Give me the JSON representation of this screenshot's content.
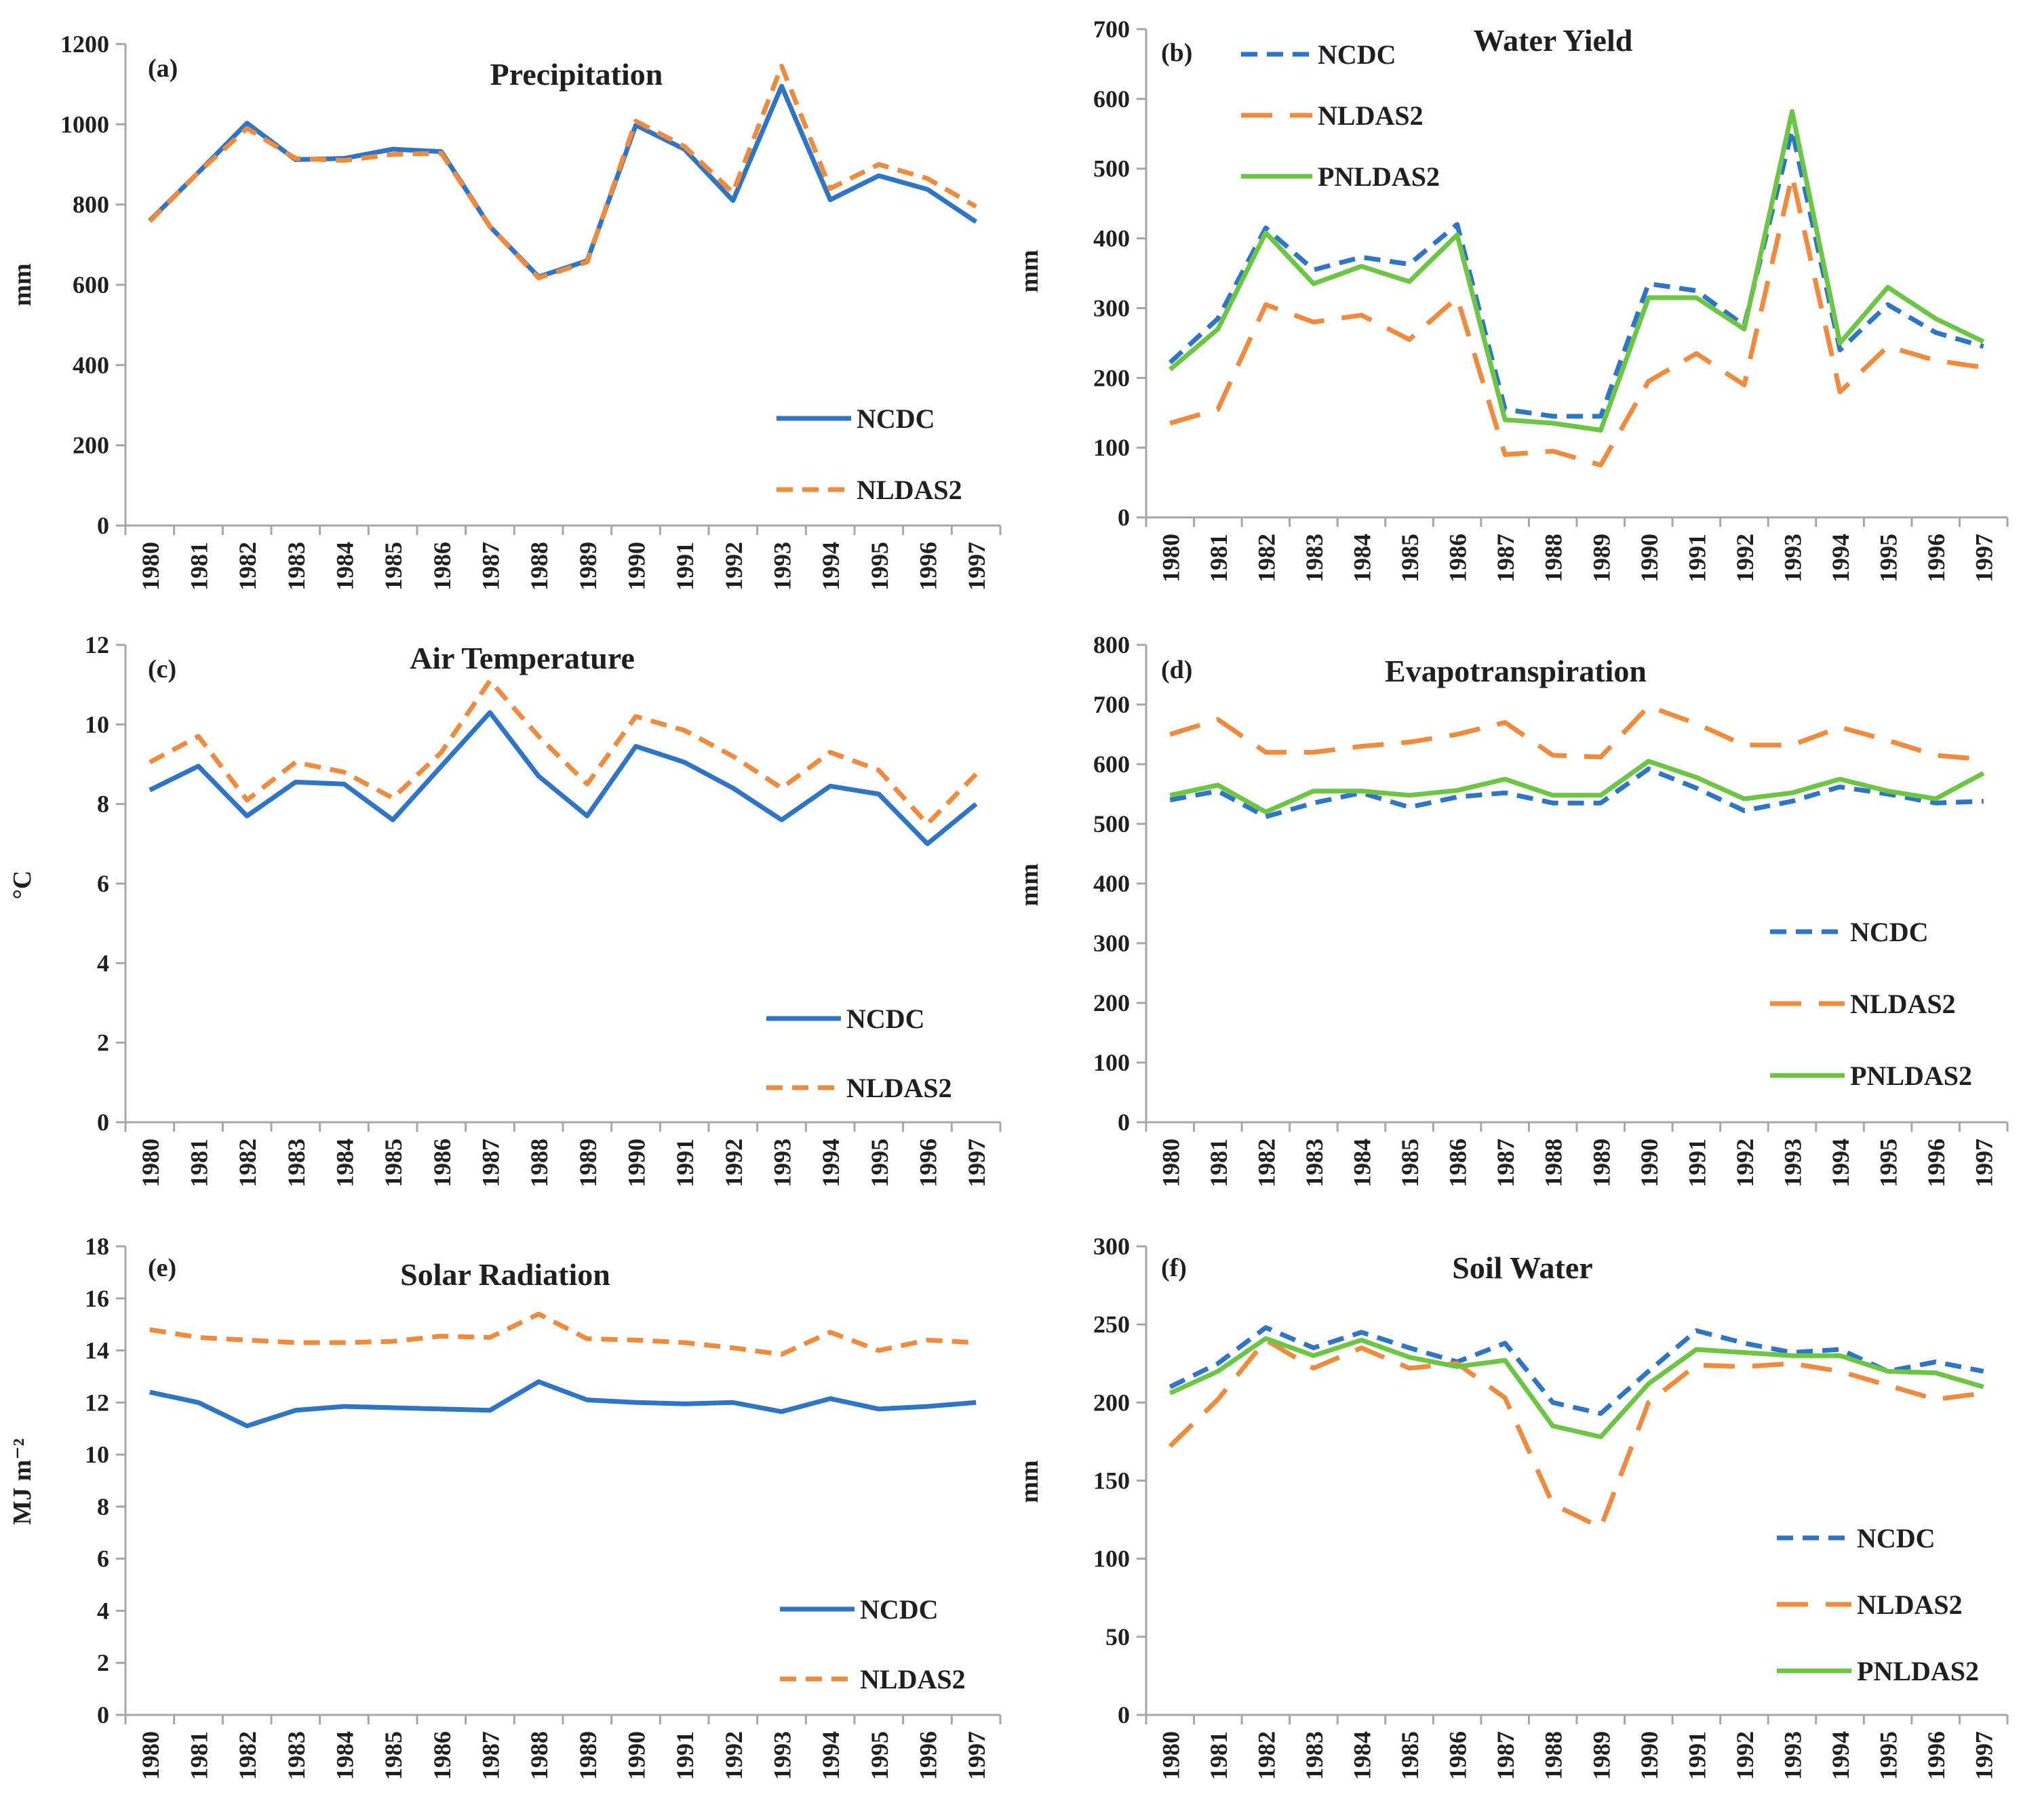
{
  "years": [
    "1980",
    "1981",
    "1982",
    "1983",
    "1984",
    "1985",
    "1986",
    "1987",
    "1988",
    "1989",
    "1990",
    "1991",
    "1992",
    "1993",
    "1994",
    "1995",
    "1996",
    "1997"
  ],
  "styles": {
    "NCDC": {
      "color": "#2e75c8"
    },
    "NLDAS2": {
      "color": "#f08a3c"
    },
    "PNLDAS2": {
      "color": "#6cc644"
    }
  },
  "chart_data": [
    {
      "id": "a",
      "type": "line",
      "panel_label": "(a)",
      "title": "Precipitation",
      "ylabel": "mm",
      "ylim": [
        0,
        1200
      ],
      "yticks": [
        "0",
        "200",
        "400",
        "600",
        "800",
        "1000",
        "1200"
      ],
      "legend_position": "bottom-right",
      "series": [
        {
          "name": "NCDC",
          "style": "solid",
          "values": [
            760,
            880,
            1003,
            912,
            915,
            938,
            932,
            745,
            620,
            660,
            998,
            938,
            810,
            1095,
            812,
            872,
            838,
            757
          ]
        },
        {
          "name": "NLDAS2",
          "style": "dashed",
          "values": [
            758,
            880,
            990,
            915,
            910,
            925,
            928,
            745,
            617,
            657,
            1008,
            945,
            830,
            1145,
            840,
            900,
            865,
            795
          ]
        }
      ]
    },
    {
      "id": "b",
      "type": "line",
      "panel_label": "(b)",
      "title": "Water Yield",
      "ylabel": "mm",
      "ylim": [
        0,
        700
      ],
      "yticks": [
        "0",
        "100",
        "200",
        "300",
        "400",
        "500",
        "600",
        "700"
      ],
      "legend_position": "top-left",
      "series": [
        {
          "name": "NCDC",
          "style": "dashed",
          "values": [
            222,
            285,
            415,
            355,
            373,
            363,
            420,
            155,
            145,
            145,
            335,
            325,
            275,
            555,
            240,
            305,
            265,
            245
          ]
        },
        {
          "name": "NLDAS2",
          "style": "longdash",
          "values": [
            135,
            155,
            305,
            280,
            290,
            255,
            315,
            90,
            95,
            75,
            195,
            235,
            190,
            490,
            180,
            245,
            225,
            215
          ]
        },
        {
          "name": "PNLDAS2",
          "style": "solid",
          "values": [
            212,
            270,
            408,
            335,
            360,
            338,
            405,
            140,
            135,
            125,
            315,
            315,
            270,
            582,
            250,
            330,
            285,
            252
          ]
        }
      ]
    },
    {
      "id": "c",
      "type": "line",
      "panel_label": "(c)",
      "title": "Air Temperature",
      "ylabel": "°C",
      "ylim": [
        0,
        12
      ],
      "yticks": [
        "0",
        "2",
        "4",
        "6",
        "8",
        "10",
        "12"
      ],
      "legend_position": "bottom-right",
      "series": [
        {
          "name": "NCDC",
          "style": "solid",
          "values": [
            8.35,
            8.95,
            7.7,
            8.55,
            8.5,
            7.6,
            8.95,
            10.3,
            8.7,
            7.7,
            9.45,
            9.05,
            8.4,
            7.6,
            8.45,
            8.25,
            7.0,
            8.0
          ]
        },
        {
          "name": "NLDAS2",
          "style": "dashed",
          "values": [
            9.05,
            9.7,
            8.1,
            9.05,
            8.8,
            8.15,
            9.3,
            11.1,
            9.7,
            8.5,
            10.2,
            9.85,
            9.2,
            8.4,
            9.3,
            8.85,
            7.5,
            8.75
          ]
        }
      ]
    },
    {
      "id": "d",
      "type": "line",
      "panel_label": "(d)",
      "title": "Evapotranspiration",
      "ylabel": "mm",
      "ylim": [
        0,
        800
      ],
      "yticks": [
        "0",
        "100",
        "200",
        "300",
        "400",
        "500",
        "600",
        "700",
        "800"
      ],
      "legend_position": "bottom-right",
      "series": [
        {
          "name": "NCDC",
          "style": "dashed",
          "values": [
            540,
            555,
            512,
            535,
            552,
            528,
            545,
            552,
            535,
            535,
            592,
            560,
            522,
            538,
            562,
            550,
            535,
            538
          ]
        },
        {
          "name": "NLDAS2",
          "style": "longdash",
          "values": [
            650,
            675,
            620,
            620,
            630,
            637,
            650,
            670,
            615,
            612,
            697,
            668,
            632,
            632,
            662,
            640,
            615,
            608
          ]
        },
        {
          "name": "PNLDAS2",
          "style": "solid",
          "values": [
            548,
            565,
            520,
            555,
            555,
            548,
            556,
            575,
            548,
            548,
            605,
            578,
            542,
            552,
            575,
            555,
            542,
            585
          ]
        }
      ]
    },
    {
      "id": "e",
      "type": "line",
      "panel_label": "(e)",
      "title": "Solar Radiation",
      "ylabel": "MJ m⁻²",
      "ylim": [
        0,
        18
      ],
      "yticks": [
        "0",
        "2",
        "4",
        "6",
        "8",
        "10",
        "12",
        "14",
        "16",
        "18"
      ],
      "legend_position": "bottom-right",
      "series": [
        {
          "name": "NCDC",
          "style": "solid",
          "values": [
            12.4,
            12.0,
            11.1,
            11.7,
            11.85,
            11.8,
            11.75,
            11.7,
            12.8,
            12.1,
            12.0,
            11.95,
            12.0,
            11.65,
            12.15,
            11.75,
            11.85,
            12.0
          ]
        },
        {
          "name": "NLDAS2",
          "style": "dashed",
          "values": [
            14.8,
            14.5,
            14.4,
            14.3,
            14.3,
            14.35,
            14.55,
            14.5,
            15.4,
            14.45,
            14.4,
            14.3,
            14.1,
            13.85,
            14.7,
            14.0,
            14.4,
            14.3
          ]
        }
      ]
    },
    {
      "id": "f",
      "type": "line",
      "panel_label": "(f)",
      "title": "Soil Water",
      "ylabel": "mm",
      "ylim": [
        0,
        300
      ],
      "yticks": [
        "0",
        "50",
        "100",
        "150",
        "200",
        "250",
        "300"
      ],
      "legend_position": "bottom-right",
      "series": [
        {
          "name": "NCDC",
          "style": "dashed",
          "values": [
            210,
            225,
            248,
            235,
            245,
            235,
            226,
            238,
            200,
            193,
            220,
            246,
            238,
            232,
            234,
            220,
            226,
            220
          ]
        },
        {
          "name": "NLDAS2",
          "style": "longdash",
          "values": [
            172,
            202,
            240,
            222,
            235,
            222,
            225,
            203,
            135,
            120,
            200,
            224,
            223,
            225,
            220,
            211,
            202,
            206
          ]
        },
        {
          "name": "PNLDAS2",
          "style": "solid",
          "values": [
            206,
            220,
            241,
            230,
            240,
            229,
            223,
            227,
            185,
            178,
            212,
            234,
            232,
            230,
            230,
            220,
            219,
            210
          ]
        }
      ]
    }
  ]
}
